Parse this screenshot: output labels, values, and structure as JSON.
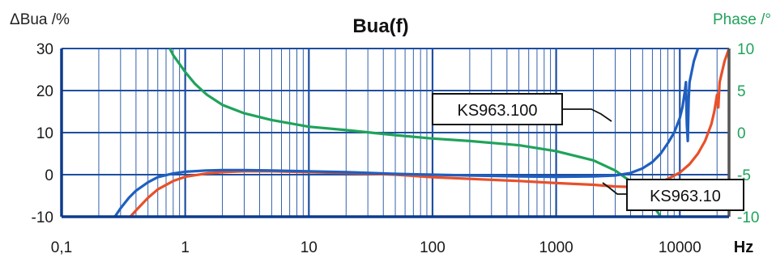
{
  "chart_data": {
    "type": "line",
    "title": "Bua(f)",
    "ylabel": "ΔBua /%",
    "y2label": "Phase /°",
    "xunit": "Hz",
    "xscale": "log",
    "xlim": [
      0.1,
      25000
    ],
    "ylim": [
      -10,
      30
    ],
    "y2lim": [
      -10,
      10
    ],
    "grid": true,
    "xticks": [
      {
        "value": 0.1,
        "label": "0,1"
      },
      {
        "value": 1,
        "label": "1"
      },
      {
        "value": 10,
        "label": "10"
      },
      {
        "value": 100,
        "label": "100"
      },
      {
        "value": 1000,
        "label": "1000"
      },
      {
        "value": 10000,
        "label": "10000"
      }
    ],
    "yticks": [
      {
        "value": 30,
        "label": "30"
      },
      {
        "value": 20,
        "label": "20"
      },
      {
        "value": 10,
        "label": "10"
      },
      {
        "value": 0,
        "label": "0"
      },
      {
        "value": -10,
        "label": "-10"
      }
    ],
    "y2ticks": [
      {
        "value": 10,
        "label": "10"
      },
      {
        "value": 5,
        "label": "5"
      },
      {
        "value": 0,
        "label": "0"
      },
      {
        "value": -5,
        "label": "-5"
      },
      {
        "value": -10,
        "label": "-10"
      }
    ],
    "colors": {
      "axis": "#0d3b8c",
      "grid": "#1e4fa0",
      "ks100": "#1f5fbf",
      "ks10": "#e8502a",
      "phase": "#1fa35a"
    },
    "series": [
      {
        "name": "KS963.100",
        "axis": "left",
        "points": [
          [
            0.27,
            -10
          ],
          [
            0.3,
            -8
          ],
          [
            0.35,
            -5.5
          ],
          [
            0.4,
            -3.8
          ],
          [
            0.5,
            -1.8
          ],
          [
            0.6,
            -0.6
          ],
          [
            0.8,
            0.3
          ],
          [
            1,
            0.7
          ],
          [
            1.5,
            1
          ],
          [
            2,
            1.1
          ],
          [
            3,
            1.1
          ],
          [
            5,
            1
          ],
          [
            10,
            0.8
          ],
          [
            20,
            0.6
          ],
          [
            50,
            0.2
          ],
          [
            100,
            0
          ],
          [
            200,
            -0.2
          ],
          [
            500,
            -0.4
          ],
          [
            1000,
            -0.5
          ],
          [
            2000,
            -0.4
          ],
          [
            3000,
            -0.2
          ],
          [
            4000,
            0.4
          ],
          [
            5000,
            1.5
          ],
          [
            6000,
            3
          ],
          [
            7000,
            5
          ],
          [
            8000,
            7.5
          ],
          [
            9000,
            10
          ],
          [
            10000,
            13.5
          ],
          [
            10500,
            16
          ],
          [
            11000,
            20
          ],
          [
            11200,
            22
          ],
          [
            11400,
            12
          ],
          [
            11600,
            8
          ],
          [
            11800,
            18
          ],
          [
            12000,
            22
          ],
          [
            13000,
            27
          ],
          [
            14000,
            30
          ]
        ]
      },
      {
        "name": "KS963.10",
        "axis": "left",
        "points": [
          [
            0.36,
            -10
          ],
          [
            0.4,
            -8.5
          ],
          [
            0.5,
            -5.5
          ],
          [
            0.6,
            -3.5
          ],
          [
            0.8,
            -1.5
          ],
          [
            1,
            -0.5
          ],
          [
            1.5,
            0.3
          ],
          [
            2,
            0.6
          ],
          [
            3,
            0.8
          ],
          [
            5,
            0.8
          ],
          [
            10,
            0.6
          ],
          [
            20,
            0.4
          ],
          [
            50,
            0
          ],
          [
            100,
            -0.6
          ],
          [
            200,
            -1
          ],
          [
            500,
            -1.5
          ],
          [
            1000,
            -2
          ],
          [
            2000,
            -2.4
          ],
          [
            3000,
            -2.8
          ],
          [
            4000,
            -2.9
          ],
          [
            5000,
            -2.6
          ],
          [
            6000,
            -2.2
          ],
          [
            7000,
            -1.7
          ],
          [
            8000,
            -1
          ],
          [
            10000,
            0.5
          ],
          [
            12000,
            2.5
          ],
          [
            14000,
            5
          ],
          [
            16000,
            8
          ],
          [
            18000,
            12
          ],
          [
            19000,
            15
          ],
          [
            20000,
            19
          ],
          [
            20500,
            16
          ],
          [
            21000,
            22
          ],
          [
            23000,
            27
          ],
          [
            25000,
            30
          ]
        ]
      },
      {
        "name": "Phase",
        "axis": "right",
        "points": [
          [
            0.75,
            10
          ],
          [
            0.8,
            9.2
          ],
          [
            1,
            7.2
          ],
          [
            1.2,
            5.8
          ],
          [
            1.5,
            4.5
          ],
          [
            2,
            3.3
          ],
          [
            3,
            2.3
          ],
          [
            5,
            1.5
          ],
          [
            10,
            0.7
          ],
          [
            20,
            0.3
          ],
          [
            50,
            -0.3
          ],
          [
            100,
            -0.7
          ],
          [
            200,
            -1
          ],
          [
            500,
            -1.5
          ],
          [
            1000,
            -2.2
          ],
          [
            2000,
            -3.3
          ],
          [
            3000,
            -4.5
          ],
          [
            4000,
            -5.8
          ],
          [
            5000,
            -7.2
          ],
          [
            6000,
            -8.5
          ],
          [
            7000,
            -10
          ]
        ]
      }
    ],
    "annotations": [
      {
        "text": "KS963.100",
        "series": "KS963.100"
      },
      {
        "text": "KS963.10",
        "series": "KS963.10"
      }
    ]
  }
}
